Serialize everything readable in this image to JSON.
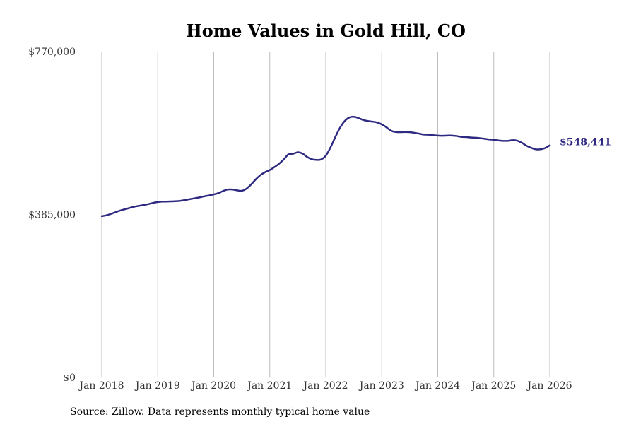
{
  "chart_data": {
    "type": "line",
    "title": "Home Values in Gold Hill, CO",
    "source": "Source: Zillow. Data represents monthly typical home value",
    "xlabel": "",
    "ylabel": "",
    "ylim": [
      0,
      770000
    ],
    "y_ticks": [
      {
        "value": 770000,
        "label": "$770,000"
      },
      {
        "value": 385000,
        "label": "$385,000"
      },
      {
        "value": 0,
        "label": "$0"
      }
    ],
    "x_ticks": [
      {
        "value": 2018,
        "label": "Jan 2018"
      },
      {
        "value": 2019,
        "label": "Jan 2019"
      },
      {
        "value": 2020,
        "label": "Jan 2020"
      },
      {
        "value": 2021,
        "label": "Jan 2021"
      },
      {
        "value": 2022,
        "label": "Jan 2022"
      },
      {
        "value": 2023,
        "label": "Jan 2023"
      },
      {
        "value": 2024,
        "label": "Jan 2024"
      },
      {
        "value": 2025,
        "label": "Jan 2025"
      },
      {
        "value": 2026,
        "label": "Jan 2026"
      }
    ],
    "xlim": [
      2018,
      2026
    ],
    "grid": "vertical",
    "series": [
      {
        "name": "Typical home value",
        "color": "#2e2a82",
        "end_label": "$548,441",
        "points": [
          [
            2018.0,
            381000
          ],
          [
            2018.083,
            383000
          ],
          [
            2018.167,
            386500
          ],
          [
            2018.25,
            390500
          ],
          [
            2018.333,
            394500
          ],
          [
            2018.417,
            397500
          ],
          [
            2018.5,
            400500
          ],
          [
            2018.583,
            403500
          ],
          [
            2018.667,
            405500
          ],
          [
            2018.75,
            407500
          ],
          [
            2018.833,
            409500
          ],
          [
            2018.917,
            412500
          ],
          [
            2019.0,
            414500
          ],
          [
            2019.083,
            415500
          ],
          [
            2019.167,
            415500
          ],
          [
            2019.25,
            416000
          ],
          [
            2019.333,
            416500
          ],
          [
            2019.417,
            417500
          ],
          [
            2019.5,
            419500
          ],
          [
            2019.583,
            421500
          ],
          [
            2019.667,
            423500
          ],
          [
            2019.75,
            425500
          ],
          [
            2019.833,
            428000
          ],
          [
            2019.917,
            430000
          ],
          [
            2020.0,
            432500
          ],
          [
            2020.083,
            435500
          ],
          [
            2020.167,
            440500
          ],
          [
            2020.25,
            444000
          ],
          [
            2020.333,
            444000
          ],
          [
            2020.417,
            442000
          ],
          [
            2020.5,
            441000
          ],
          [
            2020.583,
            446000
          ],
          [
            2020.667,
            456000
          ],
          [
            2020.75,
            468000
          ],
          [
            2020.833,
            478000
          ],
          [
            2020.917,
            485000
          ],
          [
            2021.0,
            490000
          ],
          [
            2021.083,
            497000
          ],
          [
            2021.167,
            505000
          ],
          [
            2021.25,
            515000
          ],
          [
            2021.333,
            527000
          ],
          [
            2021.417,
            528500
          ],
          [
            2021.5,
            532000
          ],
          [
            2021.583,
            529000
          ],
          [
            2021.667,
            521000
          ],
          [
            2021.75,
            515500
          ],
          [
            2021.833,
            514000
          ],
          [
            2021.917,
            515000
          ],
          [
            2022.0,
            524000
          ],
          [
            2022.083,
            543000
          ],
          [
            2022.167,
            567000
          ],
          [
            2022.25,
            589000
          ],
          [
            2022.333,
            605000
          ],
          [
            2022.417,
            614000
          ],
          [
            2022.5,
            616000
          ],
          [
            2022.583,
            613000
          ],
          [
            2022.667,
            608500
          ],
          [
            2022.75,
            606000
          ],
          [
            2022.833,
            604500
          ],
          [
            2022.917,
            602500
          ],
          [
            2023.0,
            598000
          ],
          [
            2023.083,
            591000
          ],
          [
            2023.167,
            583000
          ],
          [
            2023.25,
            580000
          ],
          [
            2023.333,
            579500
          ],
          [
            2023.417,
            580000
          ],
          [
            2023.5,
            579500
          ],
          [
            2023.583,
            578000
          ],
          [
            2023.667,
            576000
          ],
          [
            2023.75,
            574000
          ],
          [
            2023.833,
            573500
          ],
          [
            2023.917,
            572500
          ],
          [
            2024.0,
            571500
          ],
          [
            2024.083,
            571000
          ],
          [
            2024.167,
            571500
          ],
          [
            2024.25,
            571500
          ],
          [
            2024.333,
            570500
          ],
          [
            2024.417,
            568500
          ],
          [
            2024.5,
            568000
          ],
          [
            2024.583,
            567000
          ],
          [
            2024.667,
            566500
          ],
          [
            2024.75,
            565500
          ],
          [
            2024.833,
            564000
          ],
          [
            2024.917,
            562500
          ],
          [
            2025.0,
            561500
          ],
          [
            2025.083,
            560000
          ],
          [
            2025.167,
            559000
          ],
          [
            2025.25,
            559000
          ],
          [
            2025.333,
            560500
          ],
          [
            2025.417,
            559500
          ],
          [
            2025.5,
            554500
          ],
          [
            2025.583,
            547500
          ],
          [
            2025.667,
            542500
          ],
          [
            2025.75,
            539000
          ],
          [
            2025.833,
            539000
          ],
          [
            2025.917,
            542000
          ],
          [
            2026.0,
            548441
          ]
        ]
      }
    ]
  }
}
